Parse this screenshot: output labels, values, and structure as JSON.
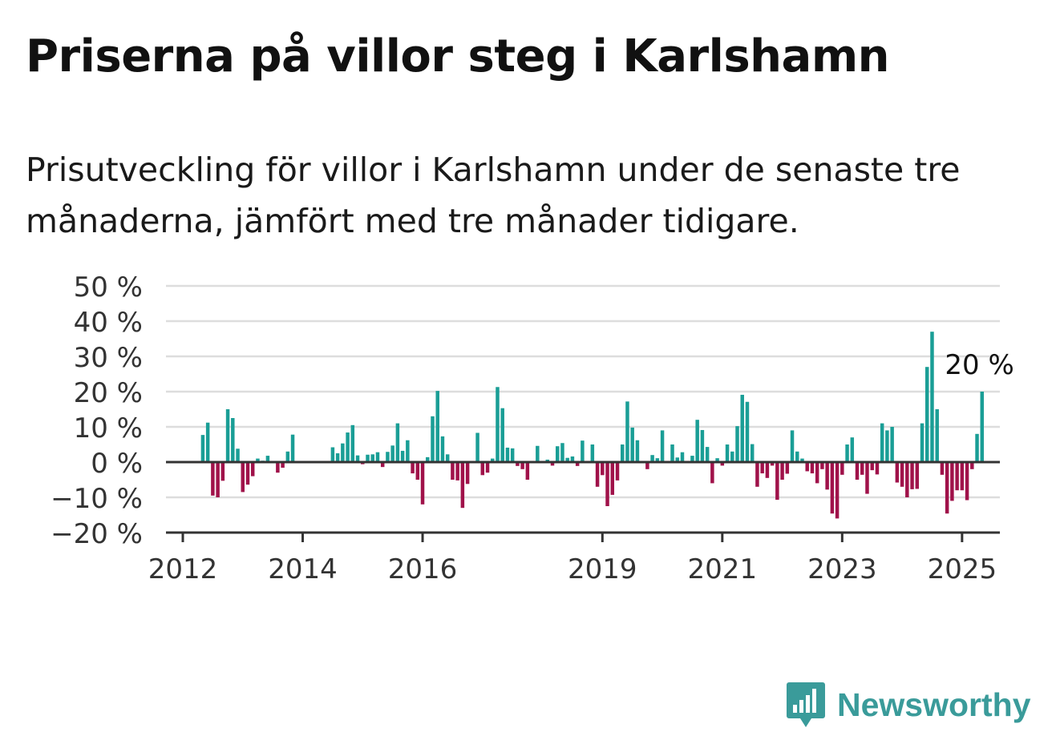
{
  "title": "Priserna på villor steg i Karlshamn",
  "subtitle": "Prisutveckling för villor i Karlshamn under de senaste tre månaderna, jämfört med tre månader tidigare.",
  "brand": {
    "name": "Newsworthy",
    "logo_icon": "newsworthy-bar-chart-icon"
  },
  "colors": {
    "positive": "#1a9e96",
    "negative": "#a0124a",
    "grid": "#dddddd",
    "axis": "#333333"
  },
  "chart_data": {
    "type": "bar",
    "x_start": "2012-01",
    "x_end": "2025-06",
    "ylim": [
      -20,
      50
    ],
    "yticks": [
      -20,
      -10,
      0,
      10,
      20,
      30,
      40,
      50
    ],
    "ytick_labels": [
      "−20 %",
      "−10 %",
      "0 %",
      "10 %",
      "20 %",
      "30 %",
      "40 %",
      "50 %"
    ],
    "xticks": [
      "2012",
      "2014",
      "2016",
      "2019",
      "2021",
      "2023",
      "2025"
    ],
    "grid": true,
    "last_value_label": "20 %",
    "x": [
      "2012-05",
      "2012-06",
      "2012-07",
      "2012-08",
      "2012-09",
      "2012-10",
      "2012-11",
      "2012-12",
      "2013-01",
      "2013-02",
      "2013-03",
      "2013-04",
      "2013-05",
      "2013-06",
      "2013-07",
      "2013-08",
      "2013-09",
      "2013-10",
      "2013-11",
      "2013-12",
      "2014-01",
      "2014-02",
      "2014-03",
      "2014-04",
      "2014-05",
      "2014-06",
      "2014-07",
      "2014-08",
      "2014-09",
      "2014-10",
      "2014-11",
      "2014-12",
      "2015-01",
      "2015-02",
      "2015-03",
      "2015-04",
      "2015-05",
      "2015-06",
      "2015-07",
      "2015-08",
      "2015-09",
      "2015-10",
      "2015-11",
      "2015-12",
      "2016-01",
      "2016-02",
      "2016-03",
      "2016-04",
      "2016-05",
      "2016-06",
      "2016-07",
      "2016-08",
      "2016-09",
      "2016-10",
      "2016-11",
      "2016-12",
      "2017-01",
      "2017-02",
      "2017-03",
      "2017-04",
      "2017-05",
      "2017-06",
      "2017-07",
      "2017-08",
      "2017-09",
      "2017-10",
      "2017-11",
      "2017-12",
      "2018-01",
      "2018-02",
      "2018-03",
      "2018-04",
      "2018-05",
      "2018-06",
      "2018-07",
      "2018-08",
      "2018-09",
      "2018-10",
      "2018-11",
      "2018-12",
      "2019-01",
      "2019-02",
      "2019-03",
      "2019-04",
      "2019-05",
      "2019-06",
      "2019-07",
      "2019-08",
      "2019-09",
      "2019-10",
      "2019-11",
      "2019-12",
      "2020-01",
      "2020-02",
      "2020-03",
      "2020-04",
      "2020-05",
      "2020-06",
      "2020-07",
      "2020-08",
      "2020-09",
      "2020-10",
      "2020-11",
      "2020-12",
      "2021-01",
      "2021-02",
      "2021-03",
      "2021-04",
      "2021-05",
      "2021-06",
      "2021-07",
      "2021-08",
      "2021-09",
      "2021-10",
      "2021-11",
      "2021-12",
      "2022-01",
      "2022-02",
      "2022-03",
      "2022-04",
      "2022-05",
      "2022-06",
      "2022-07",
      "2022-08",
      "2022-09",
      "2022-10",
      "2022-11",
      "2022-12",
      "2023-01",
      "2023-02",
      "2023-03",
      "2023-04",
      "2023-05",
      "2023-06",
      "2023-07",
      "2023-08",
      "2023-09",
      "2023-10",
      "2023-11",
      "2023-12",
      "2024-01",
      "2024-02",
      "2024-03",
      "2024-04",
      "2024-05",
      "2024-06",
      "2024-07",
      "2024-08",
      "2024-09",
      "2024-10",
      "2024-11",
      "2024-12",
      "2025-01",
      "2025-02",
      "2025-03",
      "2025-04",
      "2025-05"
    ],
    "values": [
      7.7,
      11.2,
      -9.5,
      -10.0,
      -5.3,
      15.0,
      12.5,
      3.8,
      -8.5,
      -6.4,
      -4.0,
      1.0,
      0.4,
      1.8,
      0.3,
      -3.0,
      -1.6,
      3.0,
      7.8,
      0.2,
      0.2,
      0.1,
      0.2,
      0.2,
      0.3,
      0.2,
      4.2,
      2.5,
      5.3,
      8.4,
      10.5,
      1.9,
      -0.6,
      2.1,
      2.2,
      2.8,
      -1.4,
      2.9,
      4.7,
      11.0,
      3.2,
      6.2,
      -3.2,
      -5.0,
      -12.0,
      1.4,
      13.0,
      20.2,
      7.3,
      2.2,
      -5.0,
      -5.2,
      -13.0,
      -6.2,
      0.2,
      8.3,
      -3.7,
      -3.0,
      1.0,
      21.3,
      15.3,
      4.1,
      3.9,
      -1.1,
      -2.0,
      -5.0,
      0.2,
      4.6,
      0.2,
      0.7,
      -1.0,
      4.5,
      5.4,
      1.2,
      1.6,
      -1.1,
      6.1,
      0.1,
      5.0,
      -7.0,
      -3.7,
      -12.5,
      -9.3,
      -5.2,
      5.0,
      17.2,
      9.8,
      6.2,
      0.3,
      -2.0,
      2.0,
      1.1,
      9.0,
      0.2,
      5.0,
      1.3,
      2.8,
      0.2,
      1.8,
      12.0,
      9.1,
      4.3,
      -6.0,
      1.1,
      -1.0,
      5.0,
      3.0,
      10.2,
      19.1,
      17.1,
      5.1,
      -7.0,
      -3.2,
      -4.5,
      -1.0,
      -10.7,
      -5.0,
      -3.3,
      9.0,
      3.0,
      1.0,
      -2.6,
      -3.2,
      -6.0,
      -2.0,
      -7.8,
      -14.6,
      -16.0,
      -3.6,
      5.0,
      7.0,
      -5.0,
      -3.6,
      -9.0,
      -2.3,
      -3.5,
      11.0,
      9.0,
      10.0,
      -5.8,
      -7.0,
      -10.0,
      -7.7,
      -7.6,
      11.0,
      27.0,
      37.0,
      15.0,
      -3.6,
      -14.6,
      -11.0,
      -8.0,
      -8.0,
      -10.8,
      -2.0,
      8.0,
      20.0
    ]
  }
}
